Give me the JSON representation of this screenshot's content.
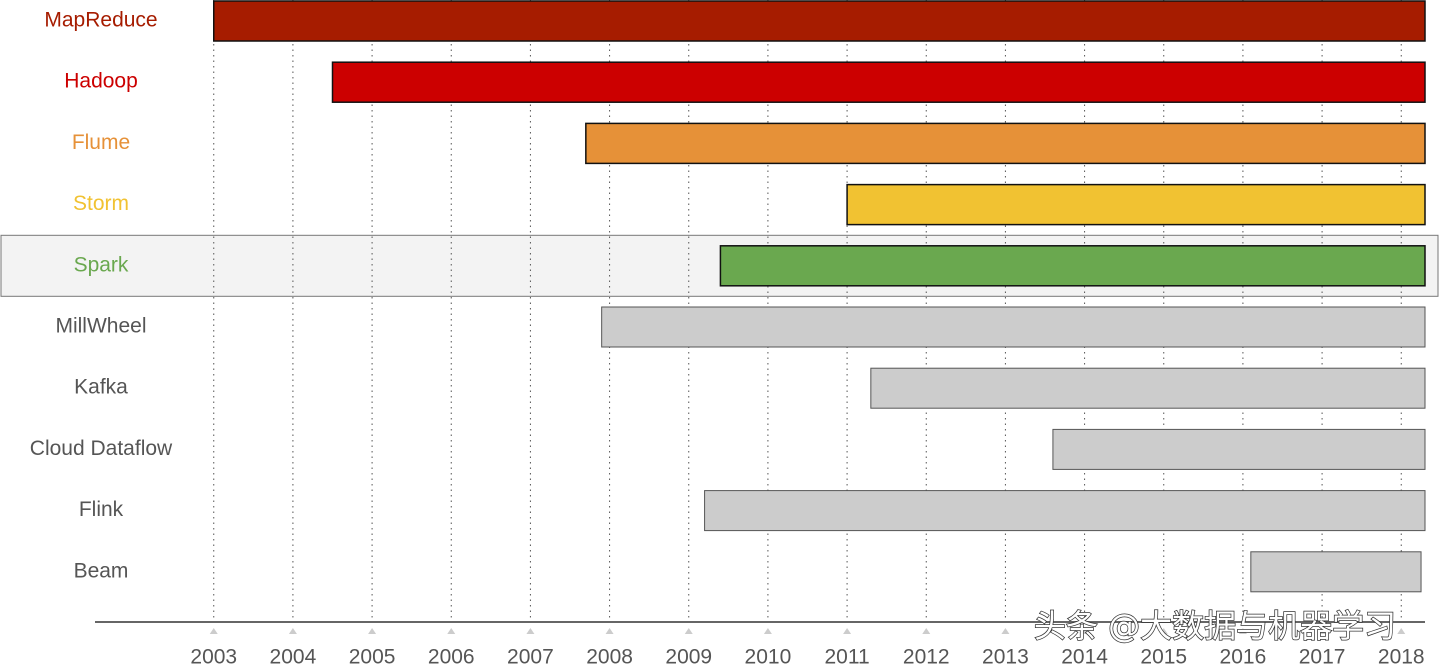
{
  "chart_data": {
    "type": "timeline",
    "categories": [
      "MapReduce",
      "Hadoop",
      "Flume",
      "Storm",
      "Spark",
      "MillWheel",
      "Kafka",
      "Cloud Dataflow",
      "Flink",
      "Beam"
    ],
    "starts": [
      2003.0,
      2004.5,
      2007.7,
      2011.0,
      2009.4,
      2007.9,
      2011.3,
      2013.6,
      2009.2,
      2016.1
    ],
    "ends": [
      2018.3,
      2018.3,
      2018.3,
      2018.3,
      2018.3,
      2018.3,
      2018.3,
      2018.3,
      2018.3,
      2018.25
    ],
    "colors": [
      "#a61c00",
      "#cc0000",
      "#e69138",
      "#f1c232",
      "#6aa84f",
      "#cccccc",
      "#cccccc",
      "#cccccc",
      "#cccccc",
      "#cccccc"
    ],
    "label_colors": [
      "#a61c00",
      "#cc0000",
      "#e69138",
      "#f1c232",
      "#6aa84f",
      "#555555",
      "#555555",
      "#555555",
      "#555555",
      "#555555"
    ],
    "highlight_index": 4,
    "xlim": [
      2001.5,
      2018.3
    ],
    "xticks": [
      2003,
      2004,
      2005,
      2006,
      2007,
      2008,
      2009,
      2010,
      2011,
      2012,
      2013,
      2014,
      2015,
      2016,
      2017,
      2018
    ],
    "grid": true
  },
  "watermark": "头条 @大数据与机器学习"
}
